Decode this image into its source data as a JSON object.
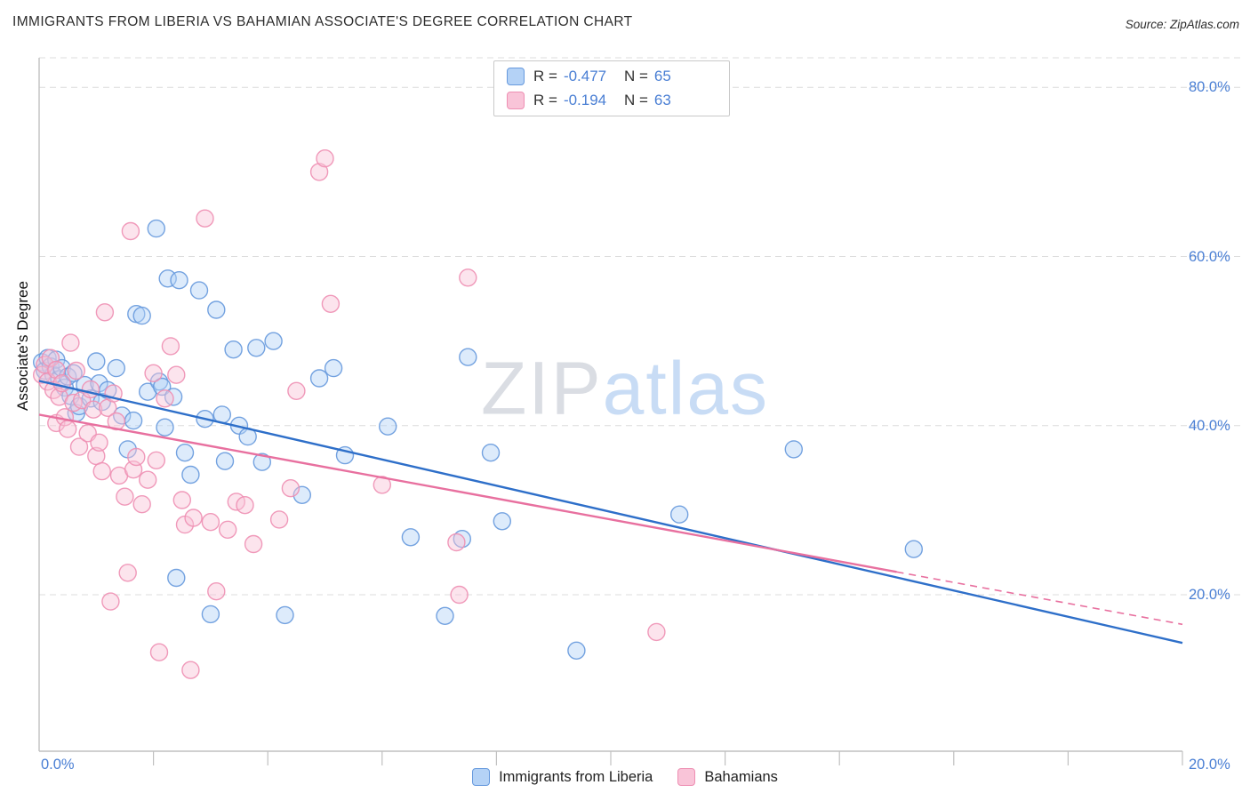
{
  "header": {
    "title": "IMMIGRANTS FROM LIBERIA VS BAHAMIAN ASSOCIATE'S DEGREE CORRELATION CHART",
    "source": "Source: ZipAtlas.com"
  },
  "watermark": {
    "zip": "ZIP",
    "atlas": "atlas"
  },
  "legend_box": {
    "r_label": "R =",
    "n_label": "N =",
    "rows": [
      {
        "r": "-0.477",
        "n": "65"
      },
      {
        "r": "-0.194",
        "n": "63"
      }
    ]
  },
  "chart_data": {
    "type": "scatter",
    "title": "Immigrants from Liberia vs Bahamian Associate's Degree correlation",
    "xlabel": "",
    "ylabel": "Associate's Degree",
    "xlim": [
      0,
      20
    ],
    "ylim": [
      1.5,
      83.5
    ],
    "x_axis_labels": {
      "left": "0.0%",
      "right": "20.0%"
    },
    "y_axis_labels": [
      "80.0%",
      "60.0%",
      "40.0%",
      "20.0%"
    ],
    "y_gridlines": [
      80,
      60,
      40,
      20
    ],
    "x_ticks": [
      2,
      4,
      6,
      8,
      10,
      12,
      14,
      16,
      18,
      20
    ],
    "grid_color": "#dcdcdc",
    "axis_color": "#c0c0c0",
    "label_color": "#4a7fd4",
    "legend_position": "bottom-center",
    "series": [
      {
        "name": "Immigrants from Liberia",
        "R": -0.477,
        "N": 65,
        "fill": "#b4d2f6",
        "stroke": "#6699dd",
        "line": "#2e6fc9",
        "trend": {
          "x1": 0,
          "y1": 45.3,
          "x2": 20,
          "y2": 14.3
        },
        "points": [
          [
            0.05,
            47.5
          ],
          [
            0.1,
            46.5
          ],
          [
            0.15,
            48.0
          ],
          [
            0.2,
            47.0
          ],
          [
            0.25,
            46.0
          ],
          [
            0.3,
            47.8
          ],
          [
            0.35,
            45.5
          ],
          [
            0.4,
            46.8
          ],
          [
            0.45,
            44.5
          ],
          [
            0.5,
            45.8
          ],
          [
            0.55,
            43.5
          ],
          [
            0.6,
            46.2
          ],
          [
            0.65,
            41.5
          ],
          [
            0.7,
            42.3
          ],
          [
            0.8,
            44.8
          ],
          [
            0.9,
            43.2
          ],
          [
            1.0,
            47.6
          ],
          [
            1.05,
            45.0
          ],
          [
            1.1,
            42.8
          ],
          [
            1.2,
            44.2
          ],
          [
            1.35,
            46.8
          ],
          [
            1.45,
            41.2
          ],
          [
            1.55,
            37.2
          ],
          [
            1.65,
            40.6
          ],
          [
            1.7,
            53.2
          ],
          [
            1.8,
            53.0
          ],
          [
            1.9,
            44.0
          ],
          [
            2.05,
            63.3
          ],
          [
            2.1,
            45.2
          ],
          [
            2.15,
            44.6
          ],
          [
            2.2,
            39.8
          ],
          [
            2.25,
            57.4
          ],
          [
            2.35,
            43.4
          ],
          [
            2.4,
            22.0
          ],
          [
            2.45,
            57.2
          ],
          [
            2.55,
            36.8
          ],
          [
            2.65,
            34.2
          ],
          [
            2.8,
            56.0
          ],
          [
            2.9,
            40.8
          ],
          [
            3.0,
            17.7
          ],
          [
            3.1,
            53.7
          ],
          [
            3.2,
            41.3
          ],
          [
            3.25,
            35.8
          ],
          [
            3.4,
            49.0
          ],
          [
            3.5,
            40.0
          ],
          [
            3.65,
            38.7
          ],
          [
            3.8,
            49.2
          ],
          [
            3.9,
            35.7
          ],
          [
            4.1,
            50.0
          ],
          [
            4.3,
            17.6
          ],
          [
            4.6,
            31.8
          ],
          [
            4.9,
            45.6
          ],
          [
            5.15,
            46.8
          ],
          [
            5.35,
            36.5
          ],
          [
            6.1,
            39.9
          ],
          [
            6.5,
            26.8
          ],
          [
            7.1,
            17.5
          ],
          [
            7.4,
            26.6
          ],
          [
            7.5,
            48.1
          ],
          [
            7.9,
            36.8
          ],
          [
            8.1,
            28.7
          ],
          [
            9.4,
            13.4
          ],
          [
            11.2,
            29.5
          ],
          [
            13.2,
            37.2
          ],
          [
            15.3,
            25.4
          ]
        ]
      },
      {
        "name": "Bahamians",
        "R": -0.194,
        "N": 63,
        "fill": "#f9c4d8",
        "stroke": "#ee8fb3",
        "line": "#e8709f",
        "trend": {
          "x1": 0,
          "y1": 41.3,
          "x2": 20,
          "y2": 16.5
        },
        "trend_dash_from": 15,
        "points": [
          [
            0.05,
            46.0
          ],
          [
            0.1,
            47.2
          ],
          [
            0.15,
            45.2
          ],
          [
            0.2,
            48.0
          ],
          [
            0.25,
            44.2
          ],
          [
            0.3,
            46.6
          ],
          [
            0.3,
            40.3
          ],
          [
            0.35,
            43.4
          ],
          [
            0.4,
            45.0
          ],
          [
            0.45,
            41.0
          ],
          [
            0.5,
            39.6
          ],
          [
            0.55,
            49.8
          ],
          [
            0.6,
            42.7
          ],
          [
            0.65,
            46.5
          ],
          [
            0.7,
            37.5
          ],
          [
            0.75,
            43.0
          ],
          [
            0.85,
            39.1
          ],
          [
            0.9,
            44.3
          ],
          [
            0.95,
            41.9
          ],
          [
            1.0,
            36.4
          ],
          [
            1.05,
            38.0
          ],
          [
            1.1,
            34.6
          ],
          [
            1.15,
            53.4
          ],
          [
            1.2,
            42.1
          ],
          [
            1.25,
            19.2
          ],
          [
            1.3,
            43.8
          ],
          [
            1.35,
            40.5
          ],
          [
            1.4,
            34.1
          ],
          [
            1.5,
            31.6
          ],
          [
            1.55,
            22.6
          ],
          [
            1.6,
            63.0
          ],
          [
            1.65,
            34.8
          ],
          [
            1.7,
            36.3
          ],
          [
            1.8,
            30.7
          ],
          [
            1.9,
            33.6
          ],
          [
            2.0,
            46.2
          ],
          [
            2.05,
            35.9
          ],
          [
            2.1,
            13.2
          ],
          [
            2.2,
            43.2
          ],
          [
            2.3,
            49.4
          ],
          [
            2.4,
            46.0
          ],
          [
            2.5,
            31.2
          ],
          [
            2.55,
            28.3
          ],
          [
            2.65,
            11.1
          ],
          [
            2.7,
            29.1
          ],
          [
            2.9,
            64.5
          ],
          [
            3.0,
            28.6
          ],
          [
            3.1,
            20.4
          ],
          [
            3.3,
            27.7
          ],
          [
            3.45,
            31.0
          ],
          [
            3.6,
            30.6
          ],
          [
            3.75,
            26.0
          ],
          [
            4.2,
            28.9
          ],
          [
            4.4,
            32.6
          ],
          [
            4.5,
            44.1
          ],
          [
            4.9,
            70.0
          ],
          [
            5.0,
            71.6
          ],
          [
            5.1,
            54.4
          ],
          [
            6.0,
            33.0
          ],
          [
            7.3,
            26.2
          ],
          [
            7.35,
            20.0
          ],
          [
            7.5,
            57.5
          ],
          [
            10.8,
            15.6
          ]
        ]
      }
    ]
  }
}
